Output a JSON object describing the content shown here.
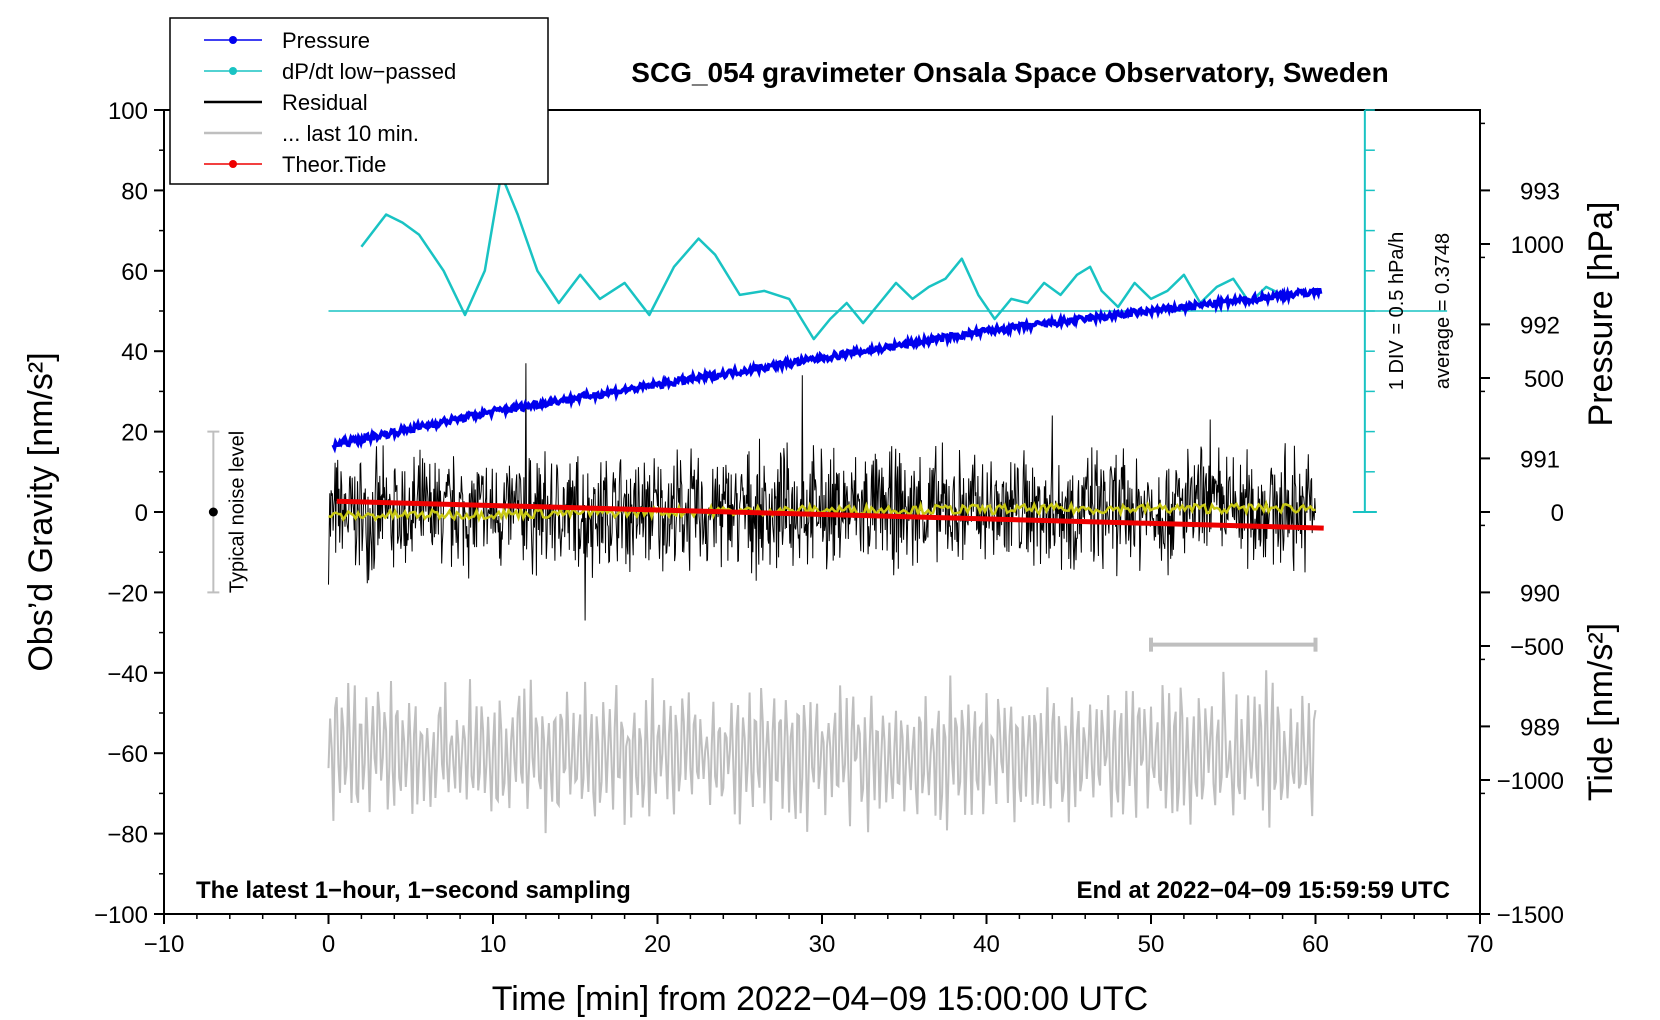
{
  "chart_data": {
    "type": "line",
    "title": "SCG_054 gravimeter Onsala Space Observatory, Sweden",
    "xlabel": "Time [min] from 2022−04−09 15:00:00 UTC",
    "ylabel_left": "Obs’d Gravity [nm/s²]",
    "ylabel_right_top": "Pressure [hPa]",
    "ylabel_right_bottom": "Tide [nm/s²]",
    "xlim": [
      -10,
      70
    ],
    "ylim": [
      -100,
      100
    ],
    "xticks": [
      "−10",
      "0",
      "10",
      "20",
      "30",
      "40",
      "50",
      "60",
      "70"
    ],
    "yticks_left": [
      "100",
      "80",
      "60",
      "40",
      "20",
      "0",
      "−20",
      "−40",
      "−60",
      "−80",
      "−100"
    ],
    "pressure_axis": {
      "ticks": [
        "993",
        "992",
        "991",
        "990",
        "989"
      ],
      "values": [
        993,
        992,
        991,
        990,
        989
      ],
      "range_hPa": [
        987.6,
        993.6
      ]
    },
    "tide_axis": {
      "ticks": [
        "1000",
        "500",
        "0",
        "−500",
        "−1000",
        "−1500"
      ],
      "values": [
        1000,
        500,
        0,
        -500,
        -1000,
        -1500
      ],
      "range": [
        -1500,
        1500
      ]
    },
    "legend": [
      {
        "label": "Pressure",
        "color": "#0000ee",
        "marker": true
      },
      {
        "label": "dP/dt low−passed",
        "color": "#19c3c3",
        "marker": true
      },
      {
        "label": "Residual",
        "color": "#000000",
        "marker": false
      },
      {
        "label": "... last 10 min.",
        "color": "#bfbfbf",
        "marker": false
      },
      {
        "label": "Theor.Tide",
        "color": "#ee0000",
        "marker": true
      }
    ],
    "annotations": {
      "bottom_left": "The latest 1−hour, 1−second sampling",
      "bottom_right": "End at 2022−04−09 15:59:59 UTC",
      "noise_label": "Typical noise level",
      "noise_range": [
        -20,
        20
      ],
      "noise_x": -7,
      "div_label": "1 DIV = 0.5 hPa/h",
      "average_label": "average = 0.3748",
      "last10_range": [
        50,
        60
      ]
    },
    "series": [
      {
        "name": "Pressure",
        "unit": "hPa",
        "x": [
          0.3,
          10,
          20,
          30,
          40,
          50,
          60.3
        ],
        "values": [
          991.1,
          991.35,
          991.55,
          991.75,
          991.95,
          992.1,
          992.25
        ]
      },
      {
        "name": "dP/dt low−passed",
        "unit": "gravity-axis equivalent",
        "x": [
          2,
          3.5,
          4.5,
          5.5,
          7,
          8.3,
          9.5,
          10.5,
          11.5,
          12.7,
          14,
          15.3,
          16.5,
          18,
          19.5,
          21,
          22.5,
          23.5,
          25,
          26.5,
          28,
          29.5,
          30.5,
          31.5,
          32.5,
          33.5,
          34.5,
          35.5,
          36.5,
          37.5,
          38.5,
          39.5,
          40.5,
          41.5,
          42.5,
          43.5,
          44.5,
          45.5,
          46.3,
          47,
          48,
          49,
          50,
          51,
          52,
          53,
          54,
          55,
          56,
          57,
          58
        ],
        "values": [
          66,
          74,
          72,
          69,
          60,
          49,
          60,
          84,
          74,
          60,
          52,
          59,
          53,
          57,
          49,
          61,
          68,
          64,
          54,
          55,
          53,
          43,
          48,
          52,
          47,
          52,
          57,
          53,
          56,
          58,
          63,
          54,
          48,
          53,
          52,
          57,
          54,
          59,
          61,
          55,
          51,
          57,
          53,
          55,
          59,
          52,
          56,
          58,
          52,
          56,
          54
        ]
      },
      {
        "name": "Residual",
        "unit": "nm/s²",
        "x_range": [
          0,
          60
        ],
        "mean_x": [
          0,
          30,
          60
        ],
        "mean_values": [
          -1,
          0.5,
          1
        ],
        "noise_amplitude": 12,
        "peak_values": [
          37,
          34,
          -27,
          24,
          23
        ]
      },
      {
        "name": "Theor.Tide",
        "unit": "nm/s²",
        "x": [
          0.5,
          60.5
        ],
        "values": [
          40,
          -60
        ]
      }
    ]
  }
}
